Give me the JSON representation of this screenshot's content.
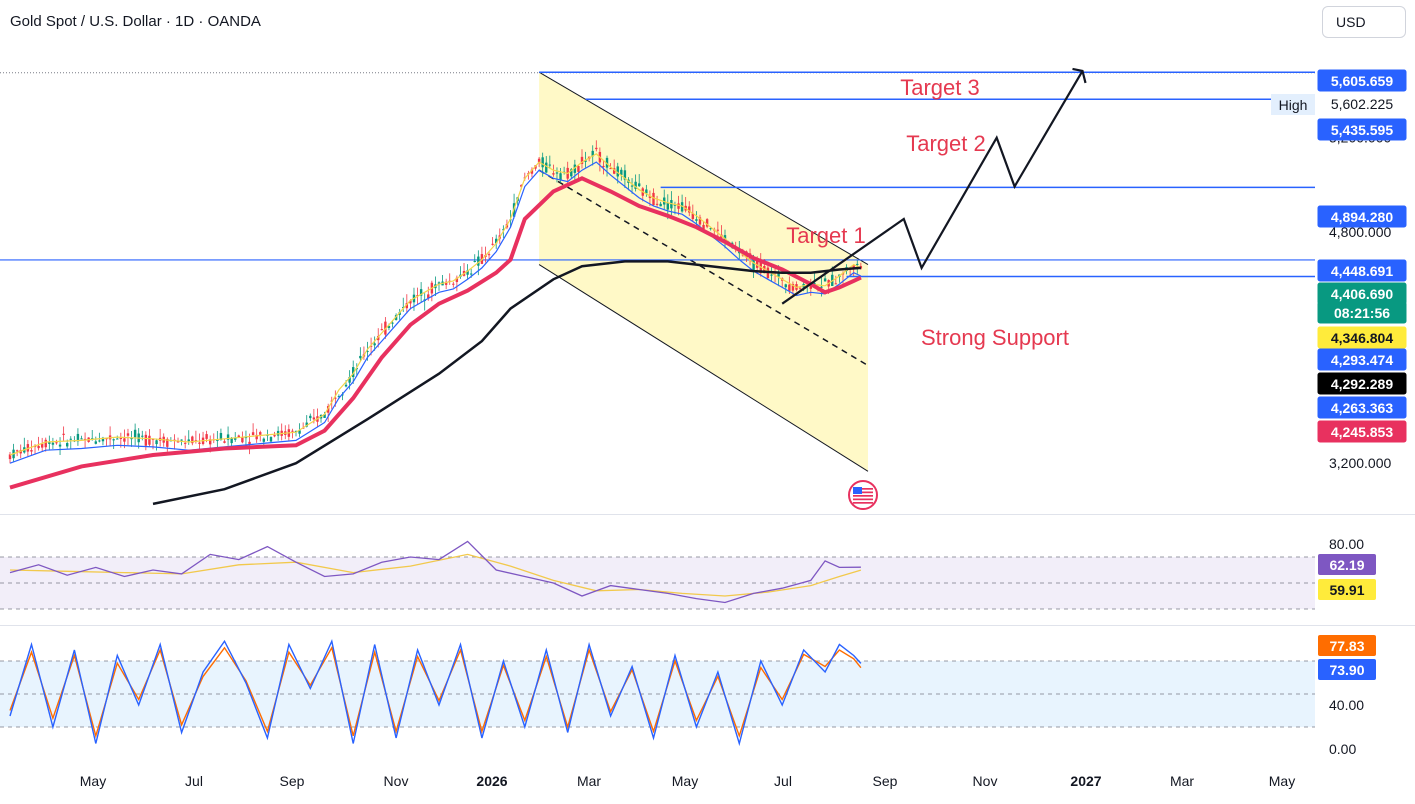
{
  "header": {
    "title": "Gold Spot / U.S. Dollar · 1D · OANDA",
    "currency": "USD"
  },
  "colors": {
    "blue_line": "#2962ff",
    "target_text": "#e53950",
    "channel_fill": "#fff9c4",
    "ema_red": "#e8315f",
    "ma_black": "#131722",
    "ma_brown": "#3b2f1a",
    "rsi_purple": "#7e57c2",
    "rsi_yellow": "#f2c94c",
    "stoch_blue": "#2962ff",
    "stoch_orange": "#ff6d00",
    "green_badge": "#089981",
    "yellow_badge": "#ffeb3b"
  },
  "annotations": {
    "target1": "Target 1",
    "target2": "Target 2",
    "target3": "Target 3",
    "support": "Strong Support",
    "high_label": "High"
  },
  "chart_data": [
    {
      "type": "line",
      "pane": "price",
      "title": "Gold Spot / U.S. Dollar · 1D · OANDA",
      "ylim": [
        2900,
        5800
      ],
      "y_ticks": [
        3200,
        5200
      ],
      "y_tick_labels": [
        "3,200.000",
        "5,200.000"
      ],
      "x_tick_labels": [
        "May",
        "Jul",
        "Sep",
        "Nov",
        "2026",
        "Mar",
        "May",
        "Jul",
        "Sep",
        "Nov",
        "2027",
        "Mar",
        "May"
      ],
      "series": [
        {
          "values": [
            [
              0,
              3250
            ],
            [
              5,
              3330
            ],
            [
              10,
              3340
            ],
            [
              15,
              3360
            ],
            [
              20,
              3350
            ],
            [
              25,
              3330
            ],
            [
              30,
              3350
            ],
            [
              35,
              3370
            ],
            [
              40,
              3390
            ],
            [
              44,
              3500
            ],
            [
              46,
              3650
            ],
            [
              48,
              3750
            ],
            [
              50,
              3900
            ],
            [
              52,
              4000
            ],
            [
              54,
              4100
            ],
            [
              56,
              4200
            ],
            [
              58,
              4250
            ],
            [
              60,
              4300
            ],
            [
              62,
              4320
            ],
            [
              64,
              4380
            ],
            [
              66,
              4450
            ],
            [
              68,
              4550
            ],
            [
              70,
              4700
            ],
            [
              72,
              4950
            ],
            [
              74,
              5050
            ],
            [
              76,
              5000
            ],
            [
              78,
              4980
            ],
            [
              80,
              5050
            ],
            [
              82,
              5100
            ],
            [
              84,
              5020
            ],
            [
              86,
              4950
            ],
            [
              88,
              4880
            ],
            [
              90,
              4830
            ],
            [
              92,
              4800
            ],
            [
              94,
              4780
            ],
            [
              96,
              4720
            ],
            [
              98,
              4650
            ],
            [
              100,
              4580
            ],
            [
              102,
              4500
            ],
            [
              104,
              4430
            ],
            [
              106,
              4380
            ],
            [
              108,
              4330
            ],
            [
              110,
              4280
            ],
            [
              112,
              4300
            ],
            [
              114,
              4290
            ],
            [
              116,
              4350
            ],
            [
              118,
              4420
            ],
            [
              119,
              4400
            ]
          ]
        },
        {
          "values": [
            [
              0,
              3050
            ],
            [
              10,
              3180
            ],
            [
              20,
              3250
            ],
            [
              30,
              3290
            ],
            [
              40,
              3310
            ],
            [
              44,
              3400
            ],
            [
              48,
              3600
            ],
            [
              52,
              3850
            ],
            [
              56,
              4050
            ],
            [
              60,
              4180
            ],
            [
              64,
              4260
            ],
            [
              68,
              4370
            ],
            [
              70,
              4450
            ],
            [
              72,
              4700
            ],
            [
              76,
              4870
            ],
            [
              80,
              4950
            ],
            [
              84,
              4870
            ],
            [
              88,
              4780
            ],
            [
              92,
              4720
            ],
            [
              96,
              4650
            ],
            [
              100,
              4560
            ],
            [
              104,
              4460
            ],
            [
              108,
              4390
            ],
            [
              112,
              4300
            ],
            [
              114,
              4250
            ],
            [
              116,
              4280
            ],
            [
              118,
              4320
            ],
            [
              119,
              4340
            ]
          ]
        },
        {
          "values": [
            [
              20,
              2950
            ],
            [
              30,
              3040
            ],
            [
              40,
              3200
            ],
            [
              50,
              3470
            ],
            [
              60,
              3750
            ],
            [
              66,
              3950
            ],
            [
              70,
              4150
            ],
            [
              76,
              4330
            ],
            [
              80,
              4410
            ],
            [
              86,
              4440
            ],
            [
              92,
              4440
            ],
            [
              96,
              4420
            ],
            [
              100,
              4400
            ],
            [
              104,
              4380
            ],
            [
              108,
              4370
            ],
            [
              112,
              4370
            ],
            [
              116,
              4390
            ],
            [
              119,
              4400
            ]
          ]
        }
      ]
    },
    {
      "type": "line",
      "pane": "rsi",
      "ylim": [
        20,
        100
      ],
      "y_ticks": [
        80
      ],
      "y_tick_labels": [
        "80.00"
      ],
      "bands": [
        70,
        30
      ],
      "series": [
        {
          "values": [
            [
              0,
              58
            ],
            [
              4,
              64
            ],
            [
              8,
              56
            ],
            [
              12,
              62
            ],
            [
              16,
              55
            ],
            [
              20,
              60
            ],
            [
              24,
              57
            ],
            [
              28,
              72
            ],
            [
              32,
              68
            ],
            [
              36,
              78
            ],
            [
              40,
              66
            ],
            [
              44,
              55
            ],
            [
              48,
              57
            ],
            [
              52,
              66
            ],
            [
              56,
              70
            ],
            [
              60,
              68
            ],
            [
              64,
              82
            ],
            [
              68,
              60
            ],
            [
              72,
              55
            ],
            [
              76,
              50
            ],
            [
              80,
              40
            ],
            [
              84,
              48
            ],
            [
              88,
              45
            ],
            [
              92,
              42
            ],
            [
              96,
              38
            ],
            [
              100,
              35
            ],
            [
              104,
              42
            ],
            [
              108,
              46
            ],
            [
              112,
              52
            ],
            [
              114,
              67
            ],
            [
              116,
              62
            ],
            [
              119,
              62.19
            ]
          ]
        },
        {
          "values": [
            [
              0,
              60
            ],
            [
              8,
              59
            ],
            [
              16,
              58
            ],
            [
              24,
              57
            ],
            [
              32,
              64
            ],
            [
              40,
              66
            ],
            [
              48,
              58
            ],
            [
              56,
              63
            ],
            [
              64,
              72
            ],
            [
              70,
              63
            ],
            [
              76,
              52
            ],
            [
              82,
              44
            ],
            [
              88,
              45
            ],
            [
              94,
              42
            ],
            [
              100,
              40
            ],
            [
              106,
              43
            ],
            [
              112,
              48
            ],
            [
              116,
              55
            ],
            [
              119,
              59.91
            ]
          ]
        }
      ],
      "last_values": [
        "62.19",
        "59.91"
      ]
    },
    {
      "type": "line",
      "pane": "stochastic",
      "ylim": [
        -10,
        110
      ],
      "y_ticks": [
        40,
        0
      ],
      "y_tick_labels": [
        "40.00",
        "0.00"
      ],
      "bands": [
        80,
        20
      ],
      "series": [
        {
          "values": [
            [
              0,
              30
            ],
            [
              3,
              95
            ],
            [
              6,
              20
            ],
            [
              9,
              90
            ],
            [
              12,
              5
            ],
            [
              15,
              85
            ],
            [
              18,
              40
            ],
            [
              21,
              95
            ],
            [
              24,
              15
            ],
            [
              27,
              70
            ],
            [
              30,
              98
            ],
            [
              33,
              60
            ],
            [
              36,
              10
            ],
            [
              39,
              95
            ],
            [
              42,
              55
            ],
            [
              45,
              98
            ],
            [
              48,
              5
            ],
            [
              51,
              95
            ],
            [
              54,
              10
            ],
            [
              57,
              90
            ],
            [
              60,
              40
            ],
            [
              63,
              95
            ],
            [
              66,
              10
            ],
            [
              69,
              80
            ],
            [
              72,
              20
            ],
            [
              75,
              90
            ],
            [
              78,
              15
            ],
            [
              81,
              95
            ],
            [
              84,
              30
            ],
            [
              87,
              75
            ],
            [
              90,
              10
            ],
            [
              93,
              85
            ],
            [
              96,
              20
            ],
            [
              99,
              70
            ],
            [
              102,
              5
            ],
            [
              105,
              80
            ],
            [
              108,
              40
            ],
            [
              111,
              90
            ],
            [
              114,
              70
            ],
            [
              116,
              95
            ],
            [
              118,
              85
            ],
            [
              119,
              77.83
            ]
          ]
        },
        {
          "values": [
            [
              0,
              35
            ],
            [
              3,
              88
            ],
            [
              6,
              28
            ],
            [
              9,
              85
            ],
            [
              12,
              12
            ],
            [
              15,
              78
            ],
            [
              18,
              45
            ],
            [
              21,
              90
            ],
            [
              24,
              22
            ],
            [
              27,
              66
            ],
            [
              30,
              92
            ],
            [
              33,
              62
            ],
            [
              36,
              16
            ],
            [
              39,
              88
            ],
            [
              42,
              58
            ],
            [
              45,
              92
            ],
            [
              48,
              12
            ],
            [
              51,
              88
            ],
            [
              54,
              16
            ],
            [
              57,
              84
            ],
            [
              60,
              44
            ],
            [
              63,
              90
            ],
            [
              66,
              16
            ],
            [
              69,
              76
            ],
            [
              72,
              26
            ],
            [
              75,
              84
            ],
            [
              78,
              20
            ],
            [
              81,
              90
            ],
            [
              84,
              34
            ],
            [
              87,
              72
            ],
            [
              90,
              16
            ],
            [
              93,
              80
            ],
            [
              96,
              26
            ],
            [
              99,
              66
            ],
            [
              102,
              12
            ],
            [
              105,
              74
            ],
            [
              108,
              45
            ],
            [
              111,
              86
            ],
            [
              114,
              75
            ],
            [
              116,
              90
            ],
            [
              118,
              82
            ],
            [
              119,
              73.9
            ]
          ]
        }
      ],
      "last_values": [
        "77.83",
        "73.90"
      ]
    }
  ],
  "price_labels": [
    {
      "text": "5,605.659",
      "bg": "#2962ff",
      "fg": "#ffffff"
    },
    {
      "text": "5,602.225",
      "bg": "#ffffff",
      "fg": "#131722"
    },
    {
      "text": "5,435.595",
      "bg": "#2962ff",
      "fg": "#ffffff"
    },
    {
      "text": "4,894.280",
      "bg": "#2962ff",
      "fg": "#ffffff"
    },
    {
      "text": "4,448.691",
      "bg": "#2962ff",
      "fg": "#ffffff"
    },
    {
      "text": "4,406.690",
      "bg": "#089981",
      "fg": "#ffffff"
    },
    {
      "text": "08:21:56",
      "bg": "#089981",
      "fg": "#ffffff"
    },
    {
      "text": "4,346.804",
      "bg": "#ffeb3b",
      "fg": "#131722"
    },
    {
      "text": "4,293.474",
      "bg": "#2962ff",
      "fg": "#ffffff"
    },
    {
      "text": "4,292.289",
      "bg": "#000000",
      "fg": "#ffffff"
    },
    {
      "text": "4,263.363",
      "bg": "#2962ff",
      "fg": "#ffffff"
    },
    {
      "text": "4,245.853",
      "bg": "#e8315f",
      "fg": "#ffffff"
    }
  ],
  "levels": {
    "target3": 5602.225,
    "target2": 5435.595,
    "target1": 4894.28,
    "resistance": 4448.691,
    "support": 4346.804
  },
  "hidden_tick_under_label": "4,800.000"
}
